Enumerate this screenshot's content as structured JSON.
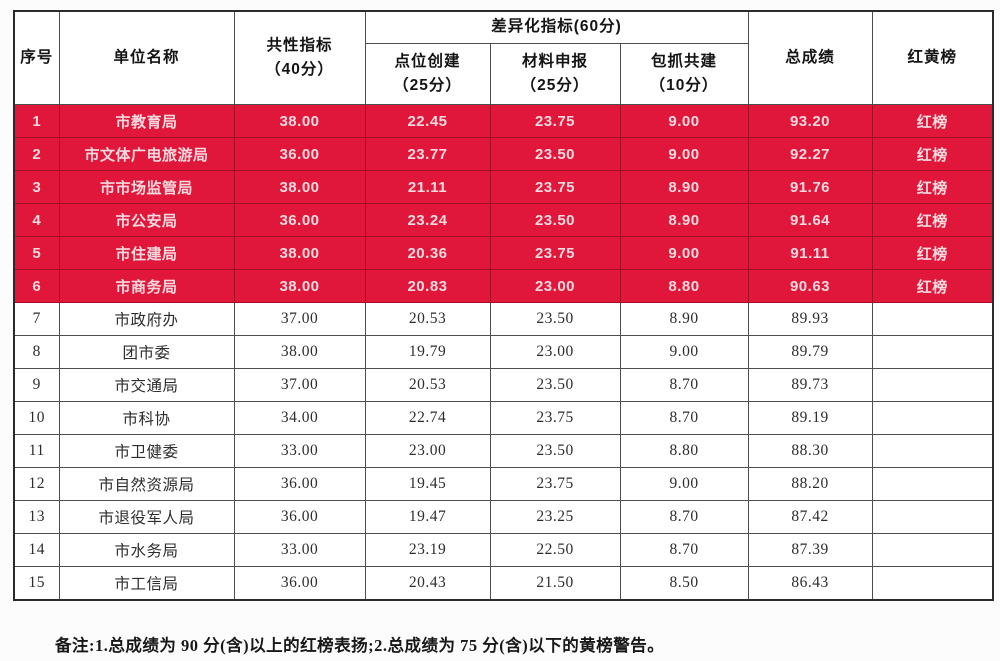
{
  "table": {
    "headers": {
      "seq": "序号",
      "unit": "单位名称",
      "common": [
        "共性指标",
        "（40分）"
      ],
      "diff_group": "差异化指标(60分)",
      "subs": [
        [
          "点位创建",
          "（25分）"
        ],
        [
          "材料申报",
          "（25分）"
        ],
        [
          "包抓共建",
          "（10分）"
        ]
      ],
      "total": "总成绩",
      "flag": "红黄榜"
    },
    "rows": [
      {
        "seq": "1",
        "unit": "市教育局",
        "common": "38.00",
        "point": "22.45",
        "material": "23.75",
        "build": "9.00",
        "total": "93.20",
        "flag": "红榜",
        "red": true
      },
      {
        "seq": "2",
        "unit": "市文体广电旅游局",
        "common": "36.00",
        "point": "23.77",
        "material": "23.50",
        "build": "9.00",
        "total": "92.27",
        "flag": "红榜",
        "red": true
      },
      {
        "seq": "3",
        "unit": "市市场监管局",
        "common": "38.00",
        "point": "21.11",
        "material": "23.75",
        "build": "8.90",
        "total": "91.76",
        "flag": "红榜",
        "red": true
      },
      {
        "seq": "4",
        "unit": "市公安局",
        "common": "36.00",
        "point": "23.24",
        "material": "23.50",
        "build": "8.90",
        "total": "91.64",
        "flag": "红榜",
        "red": true
      },
      {
        "seq": "5",
        "unit": "市住建局",
        "common": "38.00",
        "point": "20.36",
        "material": "23.75",
        "build": "9.00",
        "total": "91.11",
        "flag": "红榜",
        "red": true
      },
      {
        "seq": "6",
        "unit": "市商务局",
        "common": "38.00",
        "point": "20.83",
        "material": "23.00",
        "build": "8.80",
        "total": "90.63",
        "flag": "红榜",
        "red": true
      },
      {
        "seq": "7",
        "unit": "市政府办",
        "common": "37.00",
        "point": "20.53",
        "material": "23.50",
        "build": "8.90",
        "total": "89.93",
        "flag": "",
        "red": false
      },
      {
        "seq": "8",
        "unit": "团市委",
        "common": "38.00",
        "point": "19.79",
        "material": "23.00",
        "build": "9.00",
        "total": "89.79",
        "flag": "",
        "red": false
      },
      {
        "seq": "9",
        "unit": "市交通局",
        "common": "37.00",
        "point": "20.53",
        "material": "23.50",
        "build": "8.70",
        "total": "89.73",
        "flag": "",
        "red": false
      },
      {
        "seq": "10",
        "unit": "市科协",
        "common": "34.00",
        "point": "22.74",
        "material": "23.75",
        "build": "8.70",
        "total": "89.19",
        "flag": "",
        "red": false
      },
      {
        "seq": "11",
        "unit": "市卫健委",
        "common": "33.00",
        "point": "23.00",
        "material": "23.50",
        "build": "8.80",
        "total": "88.30",
        "flag": "",
        "red": false
      },
      {
        "seq": "12",
        "unit": "市自然资源局",
        "common": "36.00",
        "point": "19.45",
        "material": "23.75",
        "build": "9.00",
        "total": "88.20",
        "flag": "",
        "red": false
      },
      {
        "seq": "13",
        "unit": "市退役军人局",
        "common": "36.00",
        "point": "19.47",
        "material": "23.25",
        "build": "8.70",
        "total": "87.42",
        "flag": "",
        "red": false
      },
      {
        "seq": "14",
        "unit": "市水务局",
        "common": "33.00",
        "point": "23.19",
        "material": "22.50",
        "build": "8.70",
        "total": "87.39",
        "flag": "",
        "red": false
      },
      {
        "seq": "15",
        "unit": "市工信局",
        "common": "36.00",
        "point": "20.43",
        "material": "21.50",
        "build": "8.50",
        "total": "86.43",
        "flag": "",
        "red": false
      }
    ]
  },
  "note": "备注:1.总成绩为 90 分(含)以上的红榜表扬;2.总成绩为 75 分(含)以下的黄榜警告。",
  "colors": {
    "red_row_bg": "#e0173b",
    "red_row_border": "#a30d25",
    "red_row_text": "#f7d9de",
    "table_border": "#2b2b2b"
  }
}
